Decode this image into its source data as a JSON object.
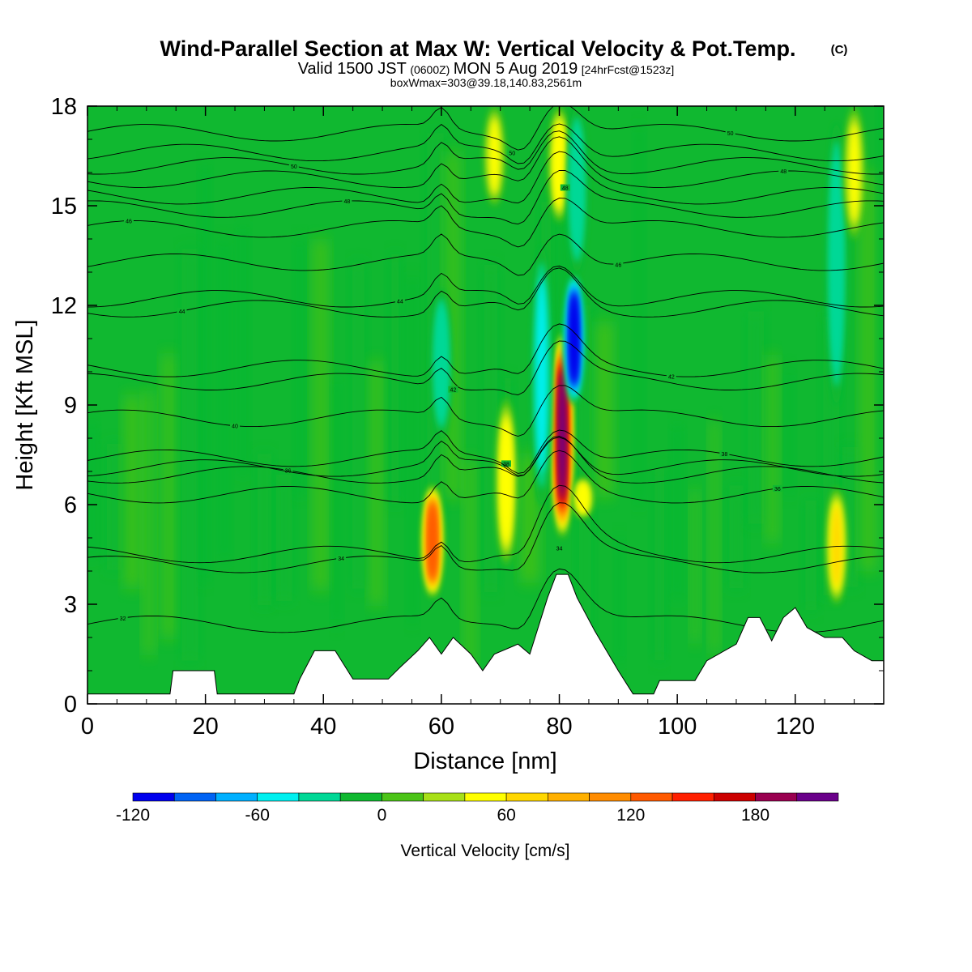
{
  "title": {
    "main": "Wind-Parallel Section at Max W: Vertical Velocity & Pot.Temp.",
    "copyright": "(C)",
    "valid_prefix": "Valid 1500 JST",
    "valid_utc": "(0600Z)",
    "valid_date": "MON 5 Aug 2019",
    "forecast": "[24hrFcst@1523z]",
    "box_info": "boxWmax=303@39.18,140.83,2561m"
  },
  "chart_data": {
    "type": "heatmap",
    "xlabel": "Distance [nm]",
    "ylabel": "Height [Kft MSL]",
    "xlim": [
      0,
      135
    ],
    "ylim": [
      0,
      18
    ],
    "x_ticks": [
      "0",
      "20",
      "40",
      "60",
      "80",
      "100",
      "120"
    ],
    "y_ticks": [
      "0",
      "3",
      "6",
      "9",
      "12",
      "15",
      "18"
    ],
    "colorbar": {
      "label": "Vertical Velocity [cm/s]",
      "min": -120,
      "max": 220,
      "step": 20,
      "tick_labels": [
        "-120",
        "-60",
        "0",
        "60",
        "120",
        "180"
      ],
      "colors": [
        "#0000ee",
        "#0063f4",
        "#00b0ff",
        "#00f0f0",
        "#00d896",
        "#10b830",
        "#4cc418",
        "#a8e018",
        "#ffff00",
        "#ffd700",
        "#ffb000",
        "#ff8c00",
        "#ff5a00",
        "#ff2000",
        "#cc0000",
        "#990050",
        "#6a008a"
      ]
    },
    "vertical_velocity_features": [
      {
        "x": 58.5,
        "z_bottom": 3.2,
        "z_top": 6.6,
        "w": 130
      },
      {
        "x": 71,
        "z_bottom": 4.2,
        "z_top": 9.2,
        "w": 55
      },
      {
        "x": 80.5,
        "z_bottom": 5.0,
        "z_top": 11.2,
        "w": 200
      },
      {
        "x": 82.5,
        "z_bottom": 9.0,
        "z_top": 13.0,
        "w": -110
      },
      {
        "x": 77,
        "z_bottom": 6.0,
        "z_top": 13.8,
        "w": -45
      },
      {
        "x": 60,
        "z_bottom": 8.0,
        "z_top": 12.5,
        "w": -40
      },
      {
        "x": 84,
        "z_bottom": 5.6,
        "z_top": 6.8,
        "w": 55
      },
      {
        "x": 127,
        "z_bottom": 3.0,
        "z_top": 6.5,
        "w": 60
      },
      {
        "x": 127,
        "z_bottom": 9.0,
        "z_top": 17.5,
        "w": -35
      },
      {
        "x": 130,
        "z_bottom": 14.0,
        "z_top": 18.0,
        "w": 40
      },
      {
        "x": 69,
        "z_bottom": 15.0,
        "z_top": 18.0,
        "w": 45
      },
      {
        "x": 80,
        "z_bottom": 14.5,
        "z_top": 18.0,
        "w": 50
      },
      {
        "x": 83,
        "z_bottom": 13.0,
        "z_top": 18.0,
        "w": -40
      }
    ],
    "terrain_heights_kft": [
      [
        0,
        0.3
      ],
      [
        14,
        0.3
      ],
      [
        14.5,
        1.0
      ],
      [
        21.5,
        1.0
      ],
      [
        22,
        0.3
      ],
      [
        35,
        0.3
      ],
      [
        36,
        0.75
      ],
      [
        38.5,
        1.6
      ],
      [
        42,
        1.6
      ],
      [
        45,
        0.75
      ],
      [
        51,
        0.75
      ],
      [
        53,
        1.1
      ],
      [
        56,
        1.6
      ],
      [
        58,
        2.0
      ],
      [
        60,
        1.5
      ],
      [
        62,
        2.0
      ],
      [
        65,
        1.5
      ],
      [
        67,
        1.0
      ],
      [
        69,
        1.5
      ],
      [
        73,
        1.8
      ],
      [
        75,
        1.5
      ],
      [
        78,
        3.2
      ],
      [
        79.5,
        3.9
      ],
      [
        81.5,
        3.9
      ],
      [
        83,
        3.2
      ],
      [
        86,
        2.2
      ],
      [
        90,
        1.0
      ],
      [
        92.5,
        0.3
      ],
      [
        96,
        0.3
      ],
      [
        97,
        0.7
      ],
      [
        103,
        0.7
      ],
      [
        105,
        1.3
      ],
      [
        110,
        1.8
      ],
      [
        112,
        2.6
      ],
      [
        114,
        2.6
      ],
      [
        116,
        1.9
      ],
      [
        118,
        2.6
      ],
      [
        120,
        2.9
      ],
      [
        122,
        2.3
      ],
      [
        125,
        2.0
      ],
      [
        128,
        2.0
      ],
      [
        130,
        1.6
      ],
      [
        133,
        1.3
      ],
      [
        135,
        1.3
      ]
    ],
    "theta_contours": [
      {
        "label": "32",
        "z": 2.4
      },
      {
        "label": "34",
        "z": 4.2
      },
      {
        "label": "34",
        "z": 4.5
      },
      {
        "label": "36",
        "z": 6.3
      },
      {
        "label": "36",
        "z": 6.9
      },
      {
        "label": "38",
        "z": 7.1
      },
      {
        "label": "38",
        "z": 7.4
      },
      {
        "label": "40",
        "z": 8.6
      },
      {
        "label": "42",
        "z": 9.7
      },
      {
        "label": "42",
        "z": 10.1
      },
      {
        "label": "44",
        "z": 11.9
      },
      {
        "label": "44",
        "z": 12.2
      },
      {
        "label": "46",
        "z": 13.3
      },
      {
        "label": "46",
        "z": 14.3
      },
      {
        "label": "48",
        "z": 14.9
      },
      {
        "label": "48",
        "z": 15.3
      },
      {
        "label": "48",
        "z": 15.8
      },
      {
        "label": "50",
        "z": 16.2
      },
      {
        "label": "50",
        "z": 16.6
      },
      {
        "label": "50",
        "z": 17.2
      }
    ]
  }
}
